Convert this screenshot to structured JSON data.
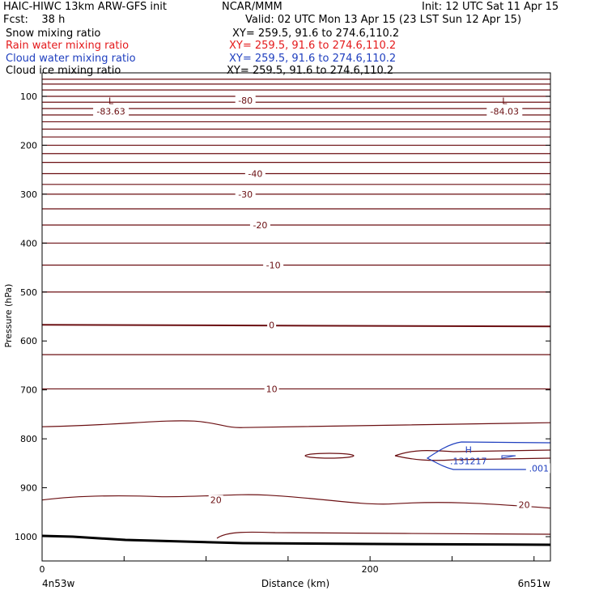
{
  "header": {
    "title": "HAIC-HIWC 13km ARW-GFS init",
    "org": "NCAR/MMM",
    "init": "Init: 12 UTC Sat 11 Apr 15",
    "fcst": "Fcst:    38 h",
    "valid": "Valid: 02 UTC Mon 13 Apr 15 (23 LST Sun 12 Apr 15)"
  },
  "fields": [
    {
      "name": "Snow mixing ratio",
      "xy": "XY= 259.5, 91.6 to 274.6,110.2",
      "color": "#000000"
    },
    {
      "name": "Rain water mixing ratio",
      "xy": "XY= 259.5, 91.6 to 274.6,110.2",
      "color": "#e41a1c"
    },
    {
      "name": "Cloud water mixing ratio",
      "xy": "XY= 259.5, 91.6 to 274.6,110.2",
      "color": "#1f3fbf"
    },
    {
      "name": "Cloud ice mixing ratio",
      "xy": "XY= 259.5, 91.6 to 274.6,110.2",
      "color": "#000000"
    }
  ],
  "chart_data": {
    "type": "contour-cross-section",
    "xlabel": "Distance (km)",
    "ylabel": "Pressure (hPa)",
    "xlim": [
      0,
      310
    ],
    "ylim": [
      1050,
      50
    ],
    "x_ticks": [
      0,
      200
    ],
    "y_ticks": [
      100,
      200,
      300,
      400,
      500,
      600,
      700,
      800,
      900,
      1000
    ],
    "endpoint_labels": {
      "left": "4n53w",
      "right": "6n51w"
    },
    "isotherms": [
      {
        "label": "-80",
        "p": 108,
        "x": 124
      },
      {
        "label": "-40",
        "p": 258,
        "x": 130
      },
      {
        "label": "-30",
        "p": 300,
        "x": 124
      },
      {
        "label": "-20",
        "p": 363,
        "x": 133
      },
      {
        "label": "-10",
        "p": 445,
        "x": 141
      },
      {
        "label": "0",
        "p": 567,
        "x": 140
      },
      {
        "label": "10",
        "p": 698,
        "x": 140
      },
      {
        "label": "20",
        "p": 925,
        "x": 106
      },
      {
        "label": "20",
        "p": 935,
        "x": 294
      }
    ],
    "lows": [
      {
        "symbol": "L",
        "value": "-83.63",
        "x": 42,
        "p": 83
      },
      {
        "symbol": "L",
        "value": "-84.03",
        "x": 282,
        "p": 83
      }
    ],
    "cloud_water": {
      "high": {
        "symbol": "H",
        "value": ".131217",
        "x": 260,
        "p": 832
      },
      "contour_label": ".001",
      "contour_label_x": 303,
      "contour_label_p": 860
    },
    "contour_pressures": [
      65,
      75,
      87,
      100,
      112,
      125,
      138,
      152,
      167,
      183,
      200,
      217,
      235,
      258,
      280,
      300,
      330,
      363,
      400,
      445,
      500,
      567,
      628,
      698,
      772,
      925
    ]
  }
}
